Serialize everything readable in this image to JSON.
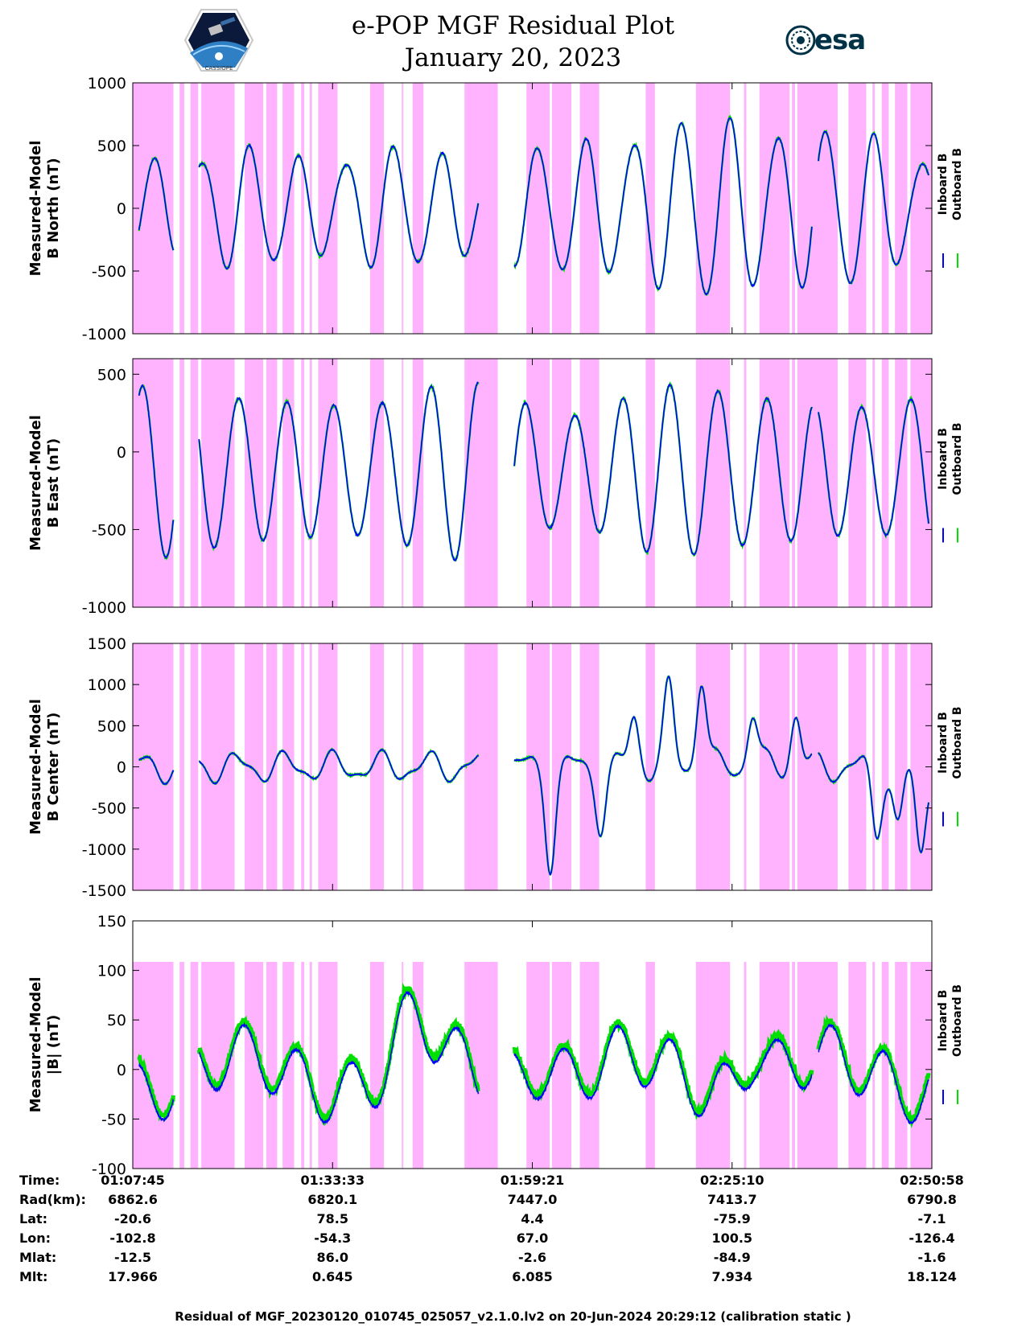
{
  "title": {
    "line1": "e-POP MGF Residual Plot",
    "line2": "January 20, 2023"
  },
  "logos": {
    "left_name": "cassiope-mission-logo",
    "left_caption": "CASSIOPE",
    "right_text": "esa"
  },
  "colors": {
    "inboard": "#0000ff",
    "outboard": "#00e000",
    "shade": "#ffb3ff",
    "axes": "#000000"
  },
  "legend": {
    "inboard": "Inboard B",
    "outboard": "Outboard B"
  },
  "chart_data": [
    {
      "type": "line",
      "ylabel_line1": "Measured-Model",
      "ylabel_line2": "B North (nT)",
      "ylim": [
        -1000,
        1000
      ],
      "yticks": [
        "1000",
        "500",
        "0",
        "-500",
        "-1000"
      ],
      "ytick_values": [
        1000,
        500,
        0,
        -500,
        -1000
      ],
      "description": "Sinusoid with approx 17 cycles, amplitude ~300-900 nT"
    },
    {
      "type": "line",
      "ylabel_line1": "Measured-Model",
      "ylabel_line2": "B East (nT)",
      "ylim": [
        -1000,
        600
      ],
      "yticks": [
        "500",
        "0",
        "-500",
        "-1000"
      ],
      "ytick_values": [
        500,
        0,
        -500,
        -1000
      ]
    },
    {
      "type": "line",
      "ylabel_line1": "Measured-Model",
      "ylabel_line2": "B Center (nT)",
      "ylim": [
        -1500,
        1500
      ],
      "yticks": [
        "1500",
        "1000",
        "500",
        "0",
        "-500",
        "-1000",
        "-1500"
      ],
      "ytick_values": [
        1500,
        1000,
        500,
        0,
        -500,
        -1000,
        -1500
      ]
    },
    {
      "type": "line",
      "ylabel_line1": "Measured-Model",
      "ylabel_line2": "|B| (nT)",
      "ylim": [
        -100,
        150
      ],
      "yticks": [
        "150",
        "100",
        "50",
        "0",
        "-50",
        "-100"
      ],
      "ytick_values": [
        150,
        100,
        50,
        0,
        -50,
        -100
      ]
    }
  ],
  "time_axis": {
    "start_minutes": 67.75,
    "end_minutes": 170.97,
    "gaps": [
      [
        73.0,
        76.3
      ],
      [
        112.4,
        117.0
      ],
      [
        155.5,
        156.3
      ]
    ]
  },
  "shaded_intervals": [
    [
      67.75,
      73.0
    ],
    [
      73.8,
      74.4
    ],
    [
      75.2,
      76.2
    ],
    [
      76.6,
      80.9
    ],
    [
      82.2,
      84.6
    ],
    [
      85.0,
      86.4
    ],
    [
      87.1,
      88.6
    ],
    [
      89.5,
      89.9
    ],
    [
      90.6,
      90.9
    ],
    [
      91.7,
      94.2
    ],
    [
      98.4,
      100.2
    ],
    [
      102.5,
      102.7
    ],
    [
      103.9,
      105.3
    ],
    [
      110.6,
      114.9
    ],
    [
      118.6,
      121.6
    ],
    [
      121.9,
      124.4
    ],
    [
      125.5,
      128.0
    ],
    [
      134.0,
      135.2
    ],
    [
      140.5,
      144.9
    ],
    [
      148.7,
      152.6
    ],
    [
      153.6,
      158.8
    ],
    [
      160.2,
      162.5
    ],
    [
      163.3,
      163.6
    ],
    [
      164.5,
      165.4
    ],
    [
      166.2,
      167.8
    ],
    [
      168.2,
      170.97
    ],
    [
      152.9,
      153.3
    ],
    [
      146.7,
      147.0
    ]
  ],
  "info_table": {
    "labels": [
      "Time:",
      "Rad(km):",
      "Lat:",
      "Lon:",
      "Mlat:",
      "Mlt:"
    ],
    "columns": [
      [
        "01:07:45",
        "6862.6",
        "-20.6",
        "-102.8",
        "-12.5",
        "17.966"
      ],
      [
        "01:33:33",
        "6820.1",
        "78.5",
        "-54.3",
        "86.0",
        "0.645"
      ],
      [
        "01:59:21",
        "7447.0",
        "4.4",
        "67.0",
        "-2.6",
        "6.085"
      ],
      [
        "02:25:10",
        "7413.7",
        "-75.9",
        "100.5",
        "-84.9",
        "7.934"
      ],
      [
        "02:50:58",
        "6790.8",
        "-7.1",
        "-126.4",
        "-1.6",
        "18.124"
      ]
    ]
  },
  "footer": "Residual of MGF_20230120_010745_025057_v2.1.0.lv2 on 20-Jun-2024 20:29:12 (calibration static )"
}
